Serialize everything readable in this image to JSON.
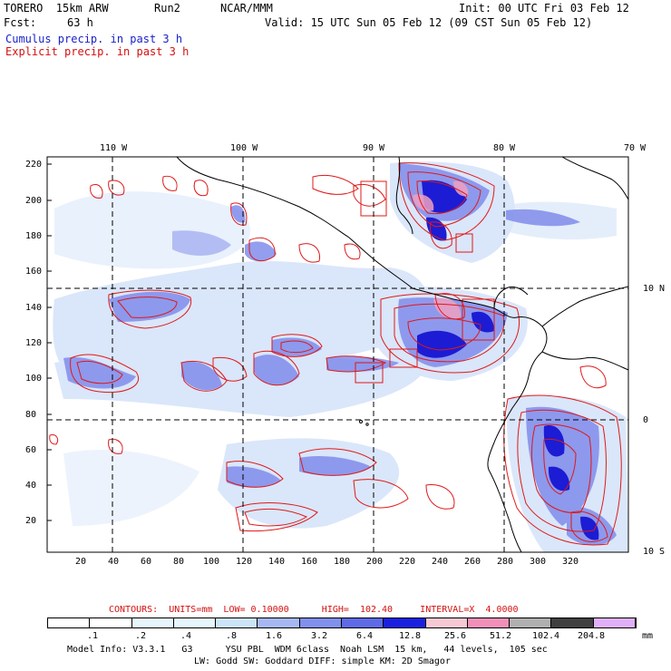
{
  "header": {
    "model": "TORERO  15km ARW",
    "run": "Run2",
    "org": "NCAR/MMM",
    "init": "Init: 00 UTC Fri 03 Feb 12",
    "fcst_label": "Fcst:",
    "fcst_hours": "63 h",
    "valid": "Valid: 15 UTC Sun 05 Feb 12 (09 CST Sun 05 Feb 12)",
    "field1": "Cumulus precip. in past 3 h",
    "field2": "Explicit precip. in past 3 h"
  },
  "map": {
    "lon_labels": [
      "110 W",
      "100 W",
      "90 W",
      "80 W",
      "70 W"
    ],
    "lat_labels": [
      "10 N",
      "0",
      "10 S"
    ],
    "y_ticks": [
      "220",
      "200",
      "180",
      "160",
      "140",
      "120",
      "100",
      "80",
      "60",
      "40",
      "20"
    ],
    "x_ticks": [
      "20",
      "40",
      "60",
      "80",
      "100",
      "120",
      "140",
      "160",
      "180",
      "200",
      "220",
      "240",
      "260",
      "280",
      "300",
      "320"
    ],
    "colors": {
      "explicit": "#e01818",
      "cumulus_light": "#c8d8f8",
      "cumulus_mid": "#6a78e8",
      "cumulus_dark": "#1a1ad8",
      "coast": "#000000"
    }
  },
  "contours": {
    "text": "CONTOURS:  UNITS=mm  LOW= 0.10000      HIGH=  102.40     INTERVAL=X  4.0000"
  },
  "legend": {
    "colors": [
      "#ffffff",
      "#ffffff",
      "#e6f6fd",
      "#e6f6fd",
      "#cce4f8",
      "#a6b8f4",
      "#8090ec",
      "#5e6ae6",
      "#1a20e0",
      "#f6c8d4",
      "#f090b8",
      "#b0b0b0",
      "#404040",
      "#e0b0f8"
    ],
    "labels": [
      ".1",
      ".2",
      ".4",
      ".8",
      "1.6",
      "3.2",
      "6.4",
      "12.8",
      "25.6",
      "51.2",
      "102.4",
      "204.8"
    ],
    "unit": "mm"
  },
  "footer": {
    "line1": "Model Info: V3.3.1   G3      YSU PBL  WDM 6class  Noah LSM  15 km,   44 levels,  105 sec",
    "line2": "LW: Godd SW: Goddard DIFF: simple KM: 2D Smagor"
  }
}
